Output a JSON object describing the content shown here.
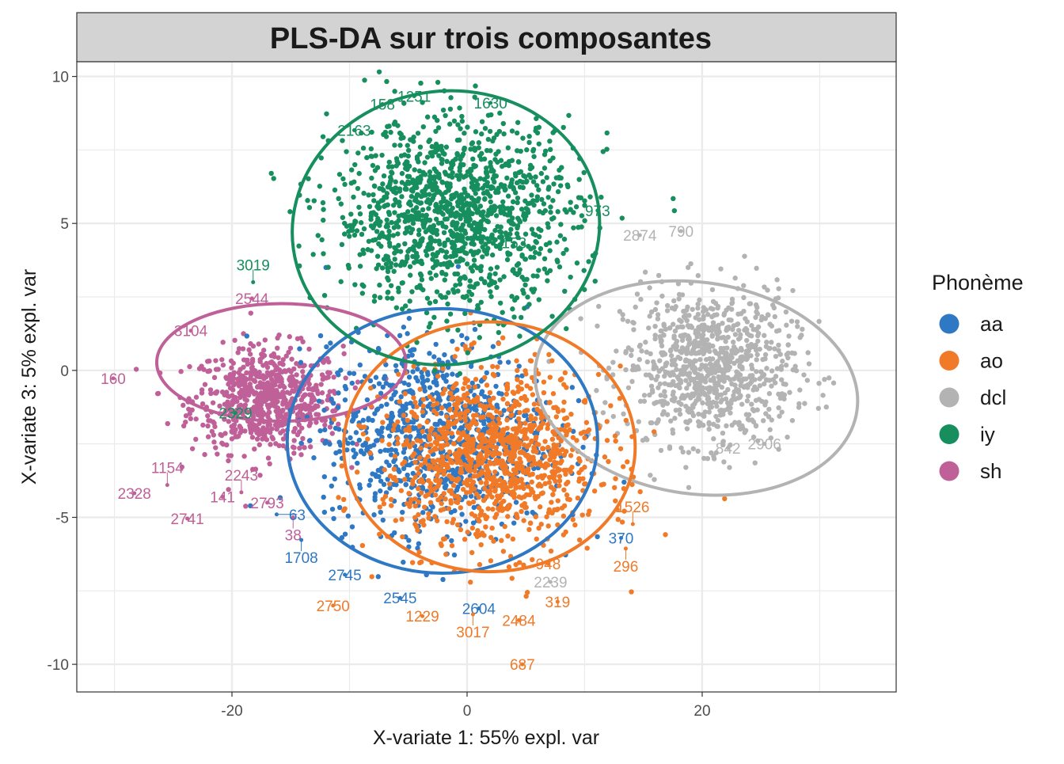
{
  "chart_data": {
    "type": "scatter",
    "title": "PLS-DA sur trois composantes",
    "xlabel": "X-variate 1: 55% expl. var",
    "ylabel": "X-variate 3: 5% expl. var",
    "xlim": [
      -33.2,
      36.5
    ],
    "ylim": [
      -10.94,
      10.5
    ],
    "xticks": [
      -20,
      0,
      20
    ],
    "yticks": [
      10,
      5,
      0,
      -5,
      -10
    ],
    "ytick_labels": [
      "10",
      "5",
      "0",
      "-5",
      "-10"
    ],
    "xtick_labels": [
      "-20",
      "0",
      "20"
    ],
    "grid": true,
    "legend": {
      "title": "Phonème",
      "placement": "right",
      "entries": [
        "aa",
        "ao",
        "dcl",
        "iy",
        "sh"
      ]
    },
    "colors": {
      "aa": "#2E78C4",
      "ao": "#F07A28",
      "dcl": "#B3B3B3",
      "iy": "#168E5E",
      "sh": "#C06098"
    },
    "ellipses": [
      {
        "group": "sh",
        "cx": -15.8,
        "cy": 0.27,
        "rx": 10.6,
        "ry": 2.0,
        "angle": 0
      },
      {
        "group": "dcl",
        "cx": 19.5,
        "cy": -0.6,
        "rx": 13.8,
        "ry": 3.6,
        "angle": 8
      },
      {
        "group": "aa",
        "cx": -2.1,
        "cy": -2.4,
        "rx": 13.2,
        "ry": 4.5,
        "angle": 0
      },
      {
        "group": "ao",
        "cx": 1.9,
        "cy": -2.6,
        "rx": 12.4,
        "ry": 4.25,
        "angle": 0
      },
      {
        "group": "iy",
        "cx": -1.8,
        "cy": 4.85,
        "rx": 13.1,
        "ry": 4.65,
        "angle": -8
      }
    ],
    "labeled_points": [
      {
        "label": "160",
        "group": "sh",
        "x": -30.1,
        "y": -0.27
      },
      {
        "label": "2328",
        "group": "sh",
        "x": -28.3,
        "y": -4.18
      },
      {
        "label": "1154",
        "group": "sh",
        "x": -25.5,
        "y": -3.9
      },
      {
        "label": "2741",
        "group": "sh",
        "x": -23.8,
        "y": -5.04
      },
      {
        "label": "141",
        "group": "sh",
        "x": -20.8,
        "y": -4.3
      },
      {
        "label": "2243",
        "group": "sh",
        "x": -19.2,
        "y": -4.15
      },
      {
        "label": "2793",
        "group": "sh",
        "x": -17.0,
        "y": -4.5
      },
      {
        "label": "3104",
        "group": "sh",
        "x": -23.5,
        "y": 1.35
      },
      {
        "label": "2544",
        "group": "sh",
        "x": -18.3,
        "y": 2.45
      },
      {
        "label": "38",
        "group": "sh",
        "x": -14.8,
        "y": -5.0
      },
      {
        "label": "2329",
        "group": "iy",
        "x": -19.7,
        "y": -1.45
      },
      {
        "label": "3019",
        "group": "iy",
        "x": -18.2,
        "y": 3.0
      },
      {
        "label": "158",
        "group": "iy",
        "x": -7.2,
        "y": 9.06
      },
      {
        "label": "1251",
        "group": "iy",
        "x": -4.5,
        "y": 9.33
      },
      {
        "label": "1630",
        "group": "iy",
        "x": 2.0,
        "y": 9.1
      },
      {
        "label": "2163",
        "group": "iy",
        "x": -9.6,
        "y": 8.17
      },
      {
        "label": "153",
        "group": "iy",
        "x": 4.0,
        "y": 4.34
      },
      {
        "label": "973",
        "group": "iy",
        "x": 11.1,
        "y": 5.44
      },
      {
        "label": "63",
        "group": "aa",
        "x": -16.2,
        "y": -4.9
      },
      {
        "label": "1708",
        "group": "aa",
        "x": -14.1,
        "y": -5.77
      },
      {
        "label": "2745",
        "group": "aa",
        "x": -10.4,
        "y": -6.95
      },
      {
        "label": "2545",
        "group": "aa",
        "x": -5.7,
        "y": -7.74
      },
      {
        "label": "2604",
        "group": "aa",
        "x": 1.0,
        "y": -8.1
      },
      {
        "label": "370",
        "group": "aa",
        "x": 13.1,
        "y": -5.7
      },
      {
        "label": "2750",
        "group": "ao",
        "x": -11.4,
        "y": -8.0
      },
      {
        "label": "1229",
        "group": "ao",
        "x": -3.8,
        "y": -8.36
      },
      {
        "label": "3017",
        "group": "ao",
        "x": 0.5,
        "y": -8.3
      },
      {
        "label": "2484",
        "group": "ao",
        "x": 4.4,
        "y": -8.5
      },
      {
        "label": "319",
        "group": "ao",
        "x": 7.7,
        "y": -7.87
      },
      {
        "label": "687",
        "group": "ao",
        "x": 4.7,
        "y": -10.0
      },
      {
        "label": "1526",
        "group": "ao",
        "x": 14.1,
        "y": -5.23
      },
      {
        "label": "296",
        "group": "ao",
        "x": 13.5,
        "y": -6.06
      },
      {
        "label": "948",
        "group": "ao",
        "x": 6.9,
        "y": -6.58
      },
      {
        "label": "2874",
        "group": "dcl",
        "x": 14.7,
        "y": 4.6
      },
      {
        "label": "790",
        "group": "dcl",
        "x": 18.2,
        "y": 4.74
      },
      {
        "label": "2239",
        "group": "dcl",
        "x": 7.1,
        "y": -7.2
      },
      {
        "label": "2906",
        "group": "dcl",
        "x": 25.3,
        "y": -2.5
      },
      {
        "label": "842",
        "group": "dcl",
        "x": 22.2,
        "y": -2.64
      }
    ]
  }
}
